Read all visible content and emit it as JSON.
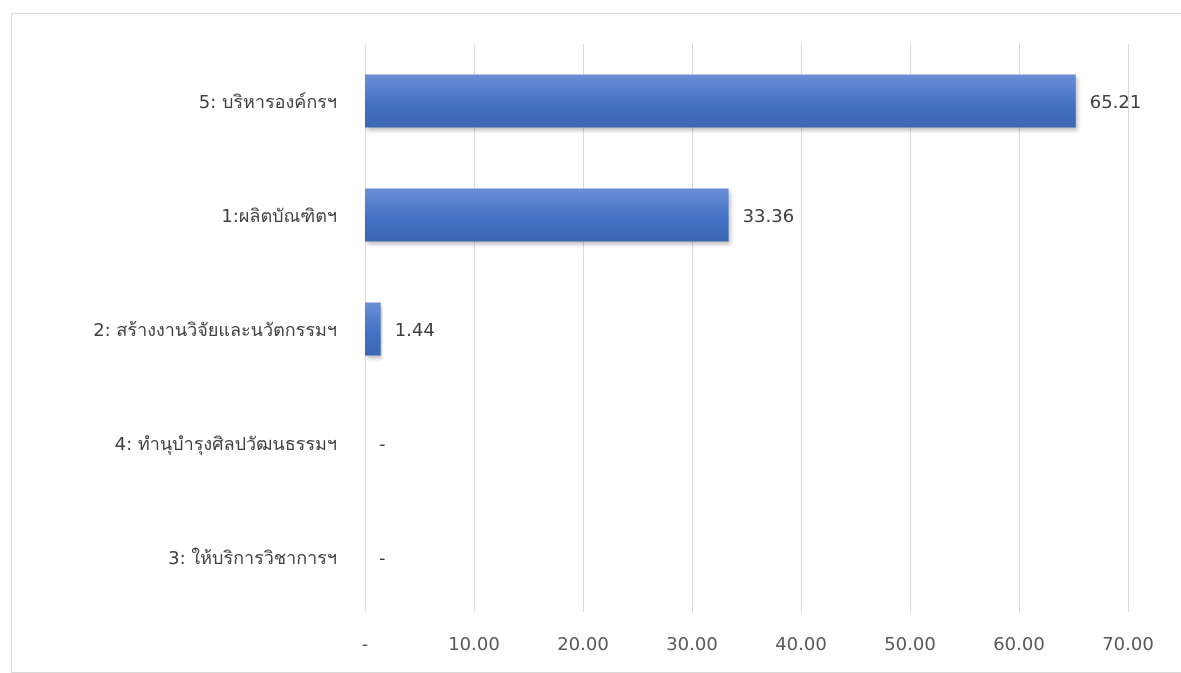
{
  "chart_data": {
    "type": "bar",
    "orientation": "horizontal",
    "categories": [
      "5: บริหารองค์กรฯ",
      "1:ผลิตบัณฑิตฯ",
      "2: สร้างงานวิจัยและนวัตกรรมฯ",
      "4: ทำนุบำรุงศิลปวัฒนธรรมฯ",
      "3: ให้บริการวิชาการฯ"
    ],
    "values": [
      65.21,
      33.36,
      1.44,
      0,
      0
    ],
    "data_labels": [
      "65.21",
      "33.36",
      "1.44",
      "-",
      "-"
    ],
    "x_ticks": [
      0,
      10,
      20,
      30,
      40,
      50,
      60,
      70
    ],
    "x_tick_labels": [
      "-",
      "10.00",
      "20.00",
      "30.00",
      "40.00",
      "50.00",
      "60.00",
      "70.00"
    ],
    "xlim": [
      0,
      70
    ],
    "grid": "vertical",
    "legend": "none",
    "title": "",
    "xlabel": "",
    "ylabel": "",
    "bar_color": "#4472c4"
  }
}
